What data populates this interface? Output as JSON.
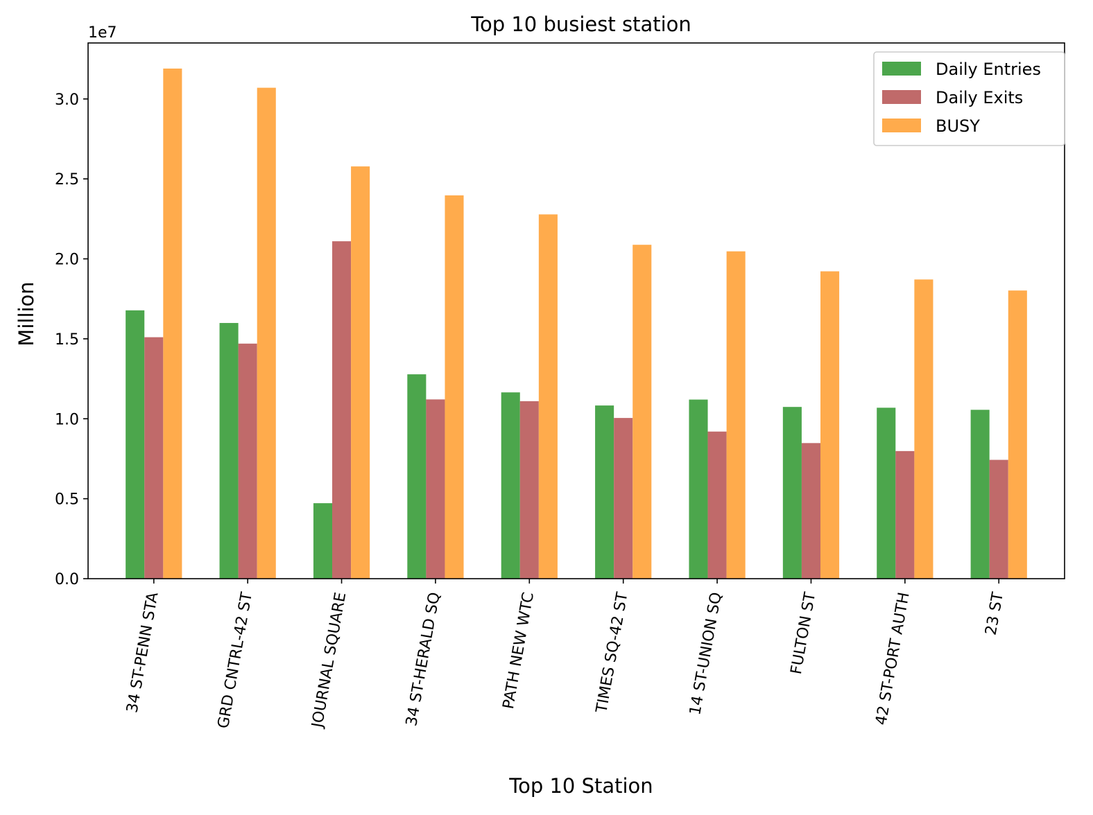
{
  "chart_data": {
    "type": "bar",
    "title": "Top 10 busiest station",
    "xlabel": "Top 10 Station",
    "ylabel": "Million",
    "y_offset_text": "1e7",
    "ylim": [
      0,
      33500000
    ],
    "yticks": [
      0,
      5000000,
      10000000,
      15000000,
      20000000,
      25000000,
      30000000
    ],
    "ytick_labels": [
      "0.0",
      "0.5",
      "1.0",
      "1.5",
      "2.0",
      "2.5",
      "3.0"
    ],
    "grid": false,
    "legend_position": "top-right",
    "categories": [
      "34 ST-PENN STA",
      "GRD CNTRL-42 ST",
      "JOURNAL SQUARE",
      "34 ST-HERALD SQ",
      "PATH NEW WTC",
      "TIMES SQ-42 ST",
      "14 ST-UNION SQ",
      "FULTON ST",
      "42 ST-PORT AUTH",
      "23 ST"
    ],
    "series": [
      {
        "name": "Daily Entries",
        "color": "#4ca64c",
        "values": [
          16780000,
          15990000,
          4720000,
          12780000,
          11650000,
          10830000,
          11200000,
          10740000,
          10690000,
          10560000
        ]
      },
      {
        "name": "Daily Exits",
        "color": "#c06a6a",
        "values": [
          15100000,
          14700000,
          21100000,
          11210000,
          11100000,
          10050000,
          9200000,
          8480000,
          7980000,
          7430000
        ]
      },
      {
        "name": "BUSY",
        "color": "#ffab4c",
        "values": [
          31900000,
          30700000,
          25780000,
          23970000,
          22780000,
          20880000,
          20470000,
          19220000,
          18710000,
          18020000
        ]
      }
    ]
  }
}
